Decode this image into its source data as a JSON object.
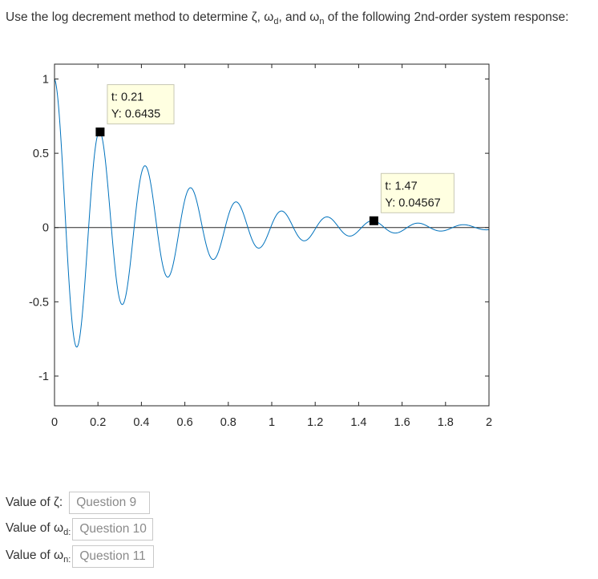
{
  "question": {
    "part1": "Use the log decrement method to determine ",
    "zeta": "ζ",
    "sep1": ", ",
    "omega": "ω",
    "sub_d": "d",
    "sep2": ", and ",
    "sub_n": "n",
    "part2": " of the following 2nd-order system response:"
  },
  "answers": [
    {
      "label_main": "Value of ζ:",
      "label_sub": "",
      "placeholder": "Question 9"
    },
    {
      "label_main": "Value of ω",
      "label_sub": "d:",
      "placeholder": "Question 10"
    },
    {
      "label_main": "Value of ω",
      "label_sub": "n:",
      "placeholder": "Question 11"
    }
  ],
  "chart_data": {
    "type": "line",
    "title": "",
    "xlabel": "",
    "ylabel": "",
    "xlim": [
      0,
      2
    ],
    "ylim": [
      -1.2,
      1.1
    ],
    "xticks": [
      0,
      0.2,
      0.4,
      0.6,
      0.8,
      1,
      1.2,
      1.4,
      1.6,
      1.8,
      2
    ],
    "xtick_labels": [
      "0",
      "0.2",
      "0.4",
      "0.6",
      "0.8",
      "1",
      "1.2",
      "1.4",
      "1.6",
      "1.8",
      "2"
    ],
    "yticks": [
      -1,
      -0.5,
      0,
      0.5,
      1
    ],
    "ytick_labels": [
      "-1",
      "-0.5",
      "0",
      "0.5",
      "1"
    ],
    "grid": false,
    "zero_line": true,
    "series": [
      {
        "name": "",
        "color": "#0072bd",
        "model": {
          "initial": 1.0,
          "decay_rate": 2.1,
          "frequency_rad_s": 30.0
        },
        "x": [
          0,
          0.105,
          0.21,
          0.315,
          0.42,
          0.525,
          0.63,
          0.735,
          0.84,
          0.945,
          1.05,
          1.155,
          1.26,
          1.365,
          1.47,
          1.575,
          1.68,
          1.785,
          1.89,
          1.995
        ],
        "y": [
          1.0,
          -0.8,
          0.6435,
          -0.51,
          0.41,
          -0.33,
          0.265,
          -0.215,
          0.17,
          -0.14,
          0.11,
          -0.09,
          0.07,
          -0.057,
          0.04567,
          -0.037,
          0.03,
          -0.024,
          0.019,
          -0.015
        ]
      }
    ],
    "datatips": [
      {
        "x": 0.21,
        "y": 0.6435,
        "label_x": "t: 0.21",
        "label_y": "Y: 0.6435"
      },
      {
        "x": 1.47,
        "y": 0.04567,
        "label_x": "t: 1.47",
        "label_y": "Y: 0.04567"
      }
    ]
  }
}
